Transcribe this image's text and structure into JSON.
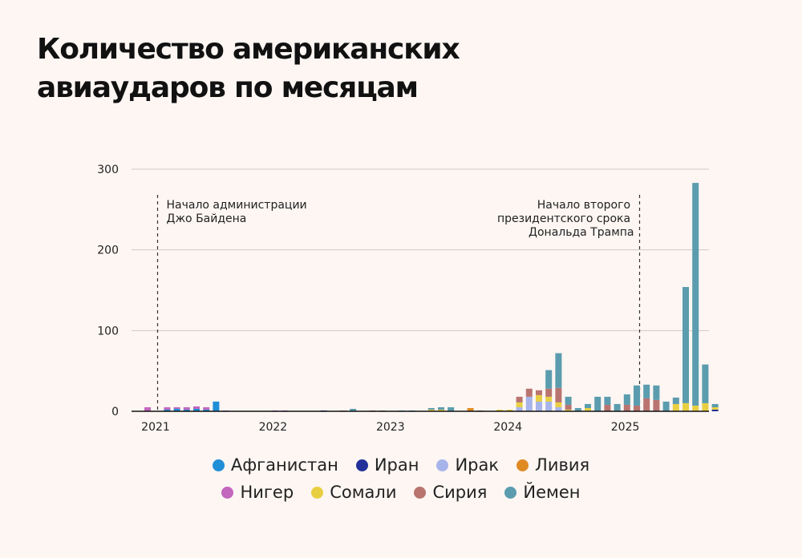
{
  "title_lines": [
    "Количество американских",
    "авиаударов по месяцам"
  ],
  "annotations": {
    "biden": [
      "Начало администрации",
      "Джо Байдена"
    ],
    "trump": [
      "Начало второго",
      "президентского срока",
      "Дональда Трампа"
    ]
  },
  "legend": [
    {
      "name": "Афганистан",
      "color": "#1f8fd8"
    },
    {
      "name": "Иран",
      "color": "#23309a"
    },
    {
      "name": "Ирак",
      "color": "#a7b4ea"
    },
    {
      "name": "Ливия",
      "color": "#e08a24"
    },
    {
      "name": "Нигер",
      "color": "#c266be"
    },
    {
      "name": "Сомали",
      "color": "#e8cf42"
    },
    {
      "name": "Сирия",
      "color": "#b97470"
    },
    {
      "name": "Йемен",
      "color": "#5b9cae"
    }
  ],
  "chart_data": {
    "type": "bar",
    "stacked": true,
    "x_unit": "month",
    "ylim": [
      0,
      300
    ],
    "yticks": [
      0,
      100,
      200,
      300
    ],
    "xtick_labels": [
      "2021",
      "2022",
      "2023",
      "2024",
      "2025"
    ],
    "grid": true,
    "legend_position": "bottom",
    "series_order": [
      "Афганистан",
      "Иран",
      "Ирак",
      "Ливия",
      "Нигер",
      "Сомали",
      "Сирия",
      "Йемен"
    ],
    "months": [
      {
        "month": "2021-01",
        "values": {
          "Нигер": 5
        }
      },
      {
        "month": "2021-03",
        "values": {
          "Афганистан": 2,
          "Нигер": 3
        }
      },
      {
        "month": "2021-04",
        "values": {
          "Афганистан": 3,
          "Нигер": 2
        }
      },
      {
        "month": "2021-05",
        "values": {
          "Афганистан": 2,
          "Нигер": 3
        }
      },
      {
        "month": "2021-06",
        "values": {
          "Афганистан": 3,
          "Нигер": 3
        }
      },
      {
        "month": "2021-07",
        "values": {
          "Афганистан": 2,
          "Нигер": 3
        }
      },
      {
        "month": "2021-08",
        "values": {
          "Афганистан": 12
        }
      },
      {
        "month": "2021-09",
        "values": {
          "Нигер": 1
        }
      },
      {
        "month": "2022-02",
        "values": {
          "Нигер": 1
        }
      },
      {
        "month": "2022-03",
        "values": {
          "Нигер": 1
        }
      },
      {
        "month": "2022-07",
        "values": {
          "Иран": 1
        }
      },
      {
        "month": "2022-09",
        "values": {
          "Сирия": 1
        }
      },
      {
        "month": "2022-10",
        "values": {
          "Йемен": 3
        }
      },
      {
        "month": "2022-12",
        "values": {
          "Сирия": 1
        }
      },
      {
        "month": "2023-01",
        "values": {
          "Сирия": 1
        }
      },
      {
        "month": "2023-03",
        "values": {
          "Йемен": 1
        }
      },
      {
        "month": "2023-04",
        "values": {
          "Йемен": 1
        }
      },
      {
        "month": "2023-06",
        "values": {
          "Сомали": 2,
          "Йемен": 2
        }
      },
      {
        "month": "2023-07",
        "values": {
          "Сомали": 2,
          "Йемен": 3
        }
      },
      {
        "month": "2023-08",
        "values": {
          "Йемен": 5
        }
      },
      {
        "month": "2023-10",
        "values": {
          "Ливия": 4
        }
      },
      {
        "month": "2023-11",
        "values": {
          "Сирия": 1
        }
      },
      {
        "month": "2024-01",
        "values": {
          "Сомали": 2
        }
      },
      {
        "month": "2024-02",
        "values": {
          "Сомали": 2
        }
      },
      {
        "month": "2024-03",
        "values": {
          "Ирак": 5,
          "Сомали": 6,
          "Сирия": 7
        }
      },
      {
        "month": "2024-04",
        "values": {
          "Ирак": 18,
          "Сирия": 10
        }
      },
      {
        "month": "2024-05",
        "values": {
          "Ирак": 12,
          "Сомали": 8,
          "Сирия": 6
        }
      },
      {
        "month": "2024-06",
        "values": {
          "Ирак": 12,
          "Сомали": 6,
          "Сирия": 10,
          "Йемен": 23
        }
      },
      {
        "month": "2024-07",
        "values": {
          "Ирак": 5,
          "Сомали": 6,
          "Сирия": 18,
          "Йемен": 43
        }
      },
      {
        "month": "2024-08",
        "values": {
          "Сомали": 2,
          "Сирия": 6,
          "Йемен": 10
        }
      },
      {
        "month": "2024-09",
        "values": {
          "Йемен": 4
        }
      },
      {
        "month": "2024-10",
        "values": {
          "Сомали": 4,
          "Йемен": 5
        }
      },
      {
        "month": "2024-11",
        "values": {
          "Йемен": 18
        }
      },
      {
        "month": "2024-12",
        "values": {
          "Сирия": 8,
          "Йемен": 10
        }
      },
      {
        "month": "2025-01",
        "values": {
          "Йемен": 9
        }
      },
      {
        "month": "2025-02",
        "values": {
          "Сирия": 8,
          "Йемен": 13
        }
      },
      {
        "month": "2025-03",
        "values": {
          "Сирия": 7,
          "Йемен": 25
        }
      },
      {
        "month": "2025-04",
        "values": {
          "Сирия": 16,
          "Йемен": 17
        }
      },
      {
        "month": "2025-05",
        "values": {
          "Сирия": 14,
          "Йемен": 18
        }
      },
      {
        "month": "2025-06",
        "values": {
          "Йемен": 12
        }
      },
      {
        "month": "2025-07",
        "values": {
          "Сомали": 9,
          "Йемен": 8
        }
      },
      {
        "month": "2025-08",
        "values": {
          "Сомали": 10,
          "Йемен": 144
        }
      },
      {
        "month": "2025-09",
        "values": {
          "Сомали": 7,
          "Йемен": 276
        }
      },
      {
        "month": "2025-10",
        "values": {
          "Сомали": 10,
          "Йемен": 48
        }
      },
      {
        "month": "2025-11",
        "values": {
          "Иран": 2,
          "Сомали": 3,
          "Йемен": 4
        }
      }
    ]
  }
}
